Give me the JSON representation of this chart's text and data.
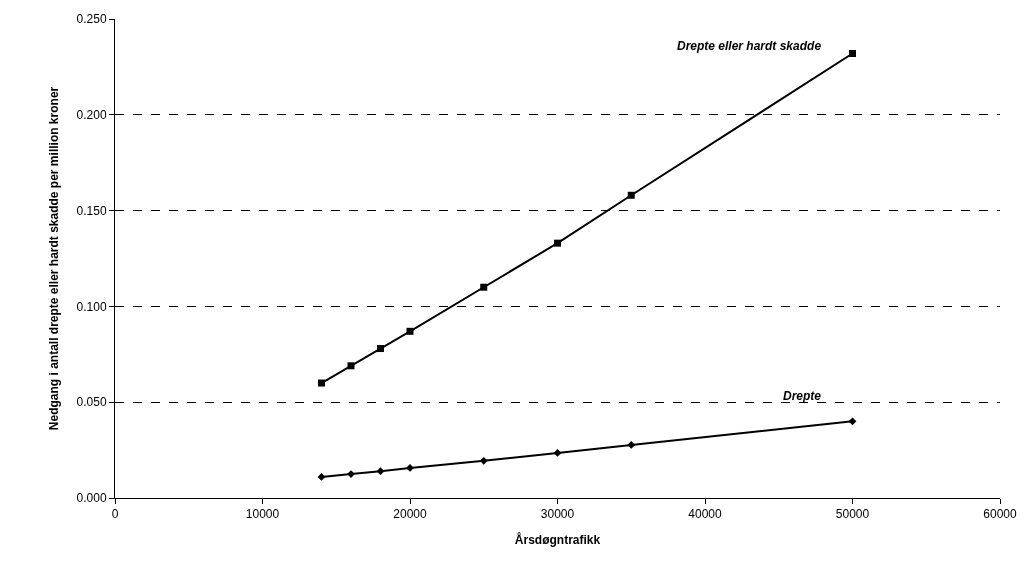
{
  "chart_data": {
    "type": "line",
    "xlabel": "Årsdøgntrafikk",
    "ylabel": "Nedgang i antall drepte eller hardt skadde per million kroner",
    "x": [
      14000,
      16000,
      18000,
      20000,
      25000,
      30000,
      35000,
      50000
    ],
    "series": [
      {
        "name": "Drepte eller hardt skadde",
        "color": "#000000",
        "marker": "square",
        "values": [
          0.06,
          0.069,
          0.078,
          0.087,
          0.11,
          0.133,
          0.158,
          0.232
        ]
      },
      {
        "name": "Drepte",
        "color": "#000000",
        "marker": "diamond",
        "values": [
          0.011,
          0.0125,
          0.014,
          0.0157,
          0.0194,
          0.0235,
          0.0277,
          0.04
        ]
      }
    ],
    "xlim": [
      0,
      60000
    ],
    "xticks": [
      0,
      10000,
      20000,
      30000,
      40000,
      50000,
      60000
    ],
    "ylim": [
      0,
      0.25
    ],
    "yticks": [
      {
        "value": 0,
        "label": "0.000"
      },
      {
        "value": 0.05,
        "label": "0.050"
      },
      {
        "value": 0.1,
        "label": "0.100"
      },
      {
        "value": 0.15,
        "label": "0.150"
      },
      {
        "value": 0.2,
        "label": "0.200"
      },
      {
        "value": 0.25,
        "label": "0.250"
      }
    ],
    "grid": "y",
    "legend": false,
    "line_style": "solid"
  }
}
